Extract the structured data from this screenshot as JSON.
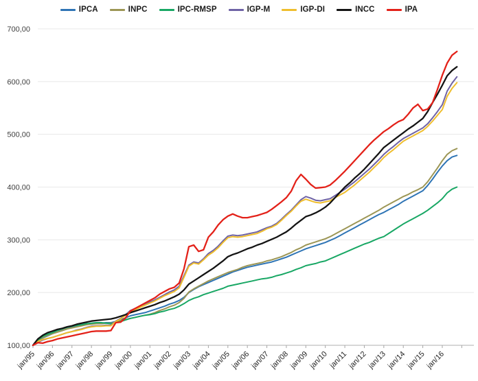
{
  "chart_data": {
    "type": "line",
    "title": "",
    "xlabel": "",
    "ylabel": "",
    "grid": true,
    "legend_position": "top",
    "ylim": [
      100,
      700
    ],
    "y_tick_labels": [
      "100,00",
      "200,00",
      "300,00",
      "400,00",
      "500,00",
      "600,00",
      "700,00"
    ],
    "y_tick_values": [
      100,
      200,
      300,
      400,
      500,
      600,
      700
    ],
    "x_start": 1995.0,
    "x_step": 0.25,
    "x_tick_years": [
      1995,
      1996,
      1997,
      1998,
      1999,
      2000,
      2001,
      2002,
      2003,
      2004,
      2005,
      2006,
      2007,
      2008,
      2009,
      2010,
      2011,
      2012,
      2013,
      2014,
      2015,
      2016
    ],
    "x_tick_labels": [
      "jan/95",
      "jan/96",
      "jan/97",
      "jan/98",
      "jan/99",
      "jan/00",
      "jan/01",
      "jan/02",
      "jan/03",
      "jan/04",
      "jan/05",
      "jan/06",
      "jan/07",
      "jan/08",
      "jan/09",
      "jan/10",
      "jan/11",
      "jan/12",
      "jan/13",
      "jan/14",
      "jan/15",
      "jan/16"
    ],
    "series": [
      {
        "name": "IPCA",
        "color": "#2e74b5",
        "width": 2,
        "values": [
          100,
          108,
          114,
          118,
          122,
          125,
          128,
          131,
          134,
          136,
          138,
          140,
          141,
          142,
          142,
          143,
          143,
          145,
          148,
          152,
          156,
          158,
          160,
          162,
          165,
          168,
          171,
          174,
          178,
          181,
          185,
          191,
          200,
          206,
          211,
          215,
          219,
          223,
          227,
          231,
          235,
          239,
          242,
          245,
          248,
          250,
          252,
          254,
          256,
          258,
          261,
          264,
          267,
          271,
          275,
          279,
          283,
          286,
          289,
          292,
          295,
          299,
          303,
          308,
          313,
          318,
          323,
          328,
          333,
          338,
          343,
          348,
          352,
          357,
          362,
          367,
          373,
          378,
          383,
          388,
          393,
          403,
          415,
          428,
          440,
          450,
          457,
          460
        ]
      },
      {
        "name": "INPC",
        "color": "#9c9655",
        "width": 2,
        "values": [
          100,
          109,
          115,
          119,
          122,
          125,
          128,
          131,
          133,
          135,
          137,
          139,
          140,
          141,
          141,
          142,
          142,
          144,
          147,
          149,
          151,
          153,
          155,
          157,
          159,
          162,
          166,
          169,
          173,
          176,
          181,
          189,
          201,
          207,
          212,
          217,
          222,
          226,
          230,
          234,
          238,
          241,
          244,
          248,
          251,
          253,
          255,
          257,
          260,
          262,
          265,
          268,
          272,
          276,
          281,
          285,
          290,
          293,
          296,
          299,
          302,
          306,
          311,
          316,
          321,
          326,
          331,
          336,
          341,
          346,
          351,
          356,
          362,
          367,
          372,
          377,
          382,
          386,
          391,
          395,
          400,
          410,
          423,
          436,
          450,
          462,
          469,
          473
        ]
      },
      {
        "name": "IPC-RMSP",
        "color": "#18a764",
        "width": 2,
        "values": [
          100,
          110,
          117,
          121,
          124,
          128,
          131,
          134,
          136,
          138,
          139,
          141,
          142,
          143,
          143,
          142,
          141,
          143,
          145,
          148,
          151,
          153,
          155,
          157,
          158,
          160,
          163,
          165,
          168,
          170,
          174,
          179,
          185,
          189,
          192,
          196,
          199,
          202,
          205,
          208,
          212,
          214,
          216,
          218,
          220,
          222,
          224,
          226,
          227,
          229,
          232,
          234,
          237,
          240,
          244,
          247,
          251,
          253,
          255,
          258,
          260,
          264,
          268,
          272,
          276,
          280,
          284,
          288,
          292,
          295,
          299,
          303,
          306,
          312,
          318,
          324,
          330,
          335,
          340,
          345,
          350,
          356,
          363,
          370,
          378,
          389,
          396,
          400
        ]
      },
      {
        "name": "IGP-M",
        "color": "#6f63a5",
        "width": 2,
        "values": [
          100,
          106,
          110,
          113,
          115,
          118,
          121,
          124,
          126,
          129,
          131,
          134,
          136,
          137,
          137,
          138,
          138,
          146,
          151,
          158,
          166,
          170,
          174,
          178,
          182,
          186,
          191,
          196,
          201,
          205,
          212,
          232,
          252,
          258,
          256,
          264,
          274,
          280,
          288,
          298,
          307,
          309,
          308,
          309,
          311,
          313,
          315,
          319,
          323,
          326,
          331,
          339,
          348,
          356,
          366,
          376,
          382,
          379,
          375,
          374,
          376,
          378,
          384,
          390,
          396,
          403,
          410,
          418,
          426,
          434,
          443,
          452,
          462,
          470,
          477,
          485,
          492,
          497,
          502,
          507,
          512,
          520,
          531,
          543,
          556,
          582,
          597,
          609
        ]
      },
      {
        "name": "IGP-DI",
        "color": "#efbe2d",
        "width": 2,
        "values": [
          100,
          107,
          111,
          113,
          115,
          118,
          121,
          124,
          126,
          128,
          130,
          133,
          135,
          136,
          136,
          137,
          137,
          145,
          150,
          157,
          164,
          168,
          172,
          176,
          180,
          184,
          189,
          194,
          198,
          202,
          209,
          229,
          250,
          256,
          254,
          262,
          271,
          277,
          285,
          295,
          304,
          306,
          305,
          306,
          308,
          310,
          312,
          316,
          321,
          324,
          329,
          337,
          346,
          354,
          364,
          373,
          377,
          374,
          371,
          370,
          372,
          374,
          380,
          385,
          390,
          397,
          404,
          412,
          420,
          428,
          437,
          446,
          456,
          464,
          471,
          479,
          487,
          492,
          497,
          502,
          507,
          515,
          525,
          536,
          547,
          572,
          587,
          598
        ]
      },
      {
        "name": "INCC",
        "color": "#141414",
        "width": 2.3,
        "values": [
          100,
          112,
          119,
          124,
          127,
          130,
          132,
          135,
          137,
          140,
          142,
          144,
          146,
          147,
          148,
          149,
          150,
          152,
          155,
          158,
          162,
          165,
          168,
          171,
          174,
          177,
          181,
          184,
          188,
          192,
          197,
          205,
          216,
          222,
          228,
          234,
          240,
          246,
          253,
          260,
          268,
          272,
          275,
          279,
          283,
          286,
          290,
          293,
          297,
          301,
          305,
          310,
          315,
          322,
          330,
          337,
          344,
          347,
          351,
          356,
          362,
          370,
          380,
          390,
          400,
          408,
          417,
          425,
          434,
          444,
          454,
          464,
          475,
          482,
          489,
          496,
          503,
          510,
          516,
          523,
          530,
          543,
          560,
          576,
          593,
          611,
          621,
          628
        ]
      },
      {
        "name": "IPA",
        "color": "#e32119",
        "width": 2.3,
        "values": [
          100,
          105,
          104,
          107,
          109,
          112,
          114,
          116,
          118,
          120,
          122,
          124,
          126,
          127,
          127,
          127,
          128,
          143,
          144,
          152,
          165,
          170,
          175,
          180,
          185,
          190,
          197,
          202,
          207,
          210,
          218,
          245,
          287,
          290,
          278,
          281,
          305,
          315,
          328,
          338,
          345,
          349,
          345,
          342,
          342,
          344,
          346,
          349,
          352,
          358,
          365,
          372,
          380,
          392,
          412,
          424,
          415,
          405,
          398,
          399,
          400,
          404,
          412,
          421,
          430,
          440,
          450,
          460,
          470,
          480,
          489,
          497,
          505,
          511,
          518,
          524,
          528,
          538,
          550,
          557,
          545,
          548,
          560,
          585,
          612,
          635,
          650,
          657
        ]
      }
    ],
    "colors": {
      "grid": "#e8e8e8",
      "axis": "#bfbfbf",
      "tick": "#a6a6a6",
      "background": "#ffffff"
    }
  }
}
